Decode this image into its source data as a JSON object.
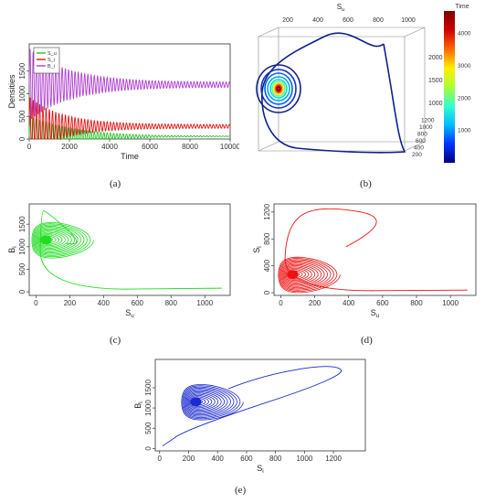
{
  "captions": {
    "a": "(a)",
    "b": "(b)",
    "c": "(c)",
    "d": "(d)",
    "e": "(e)"
  },
  "chart_data": [
    {
      "id": "a",
      "type": "line",
      "xlabel": "Time",
      "ylabel": "Densities",
      "xlim": [
        0,
        10000
      ],
      "ylim": [
        0,
        2100
      ],
      "xticks": [
        0,
        2000,
        4000,
        6000,
        8000,
        10000
      ],
      "yticks": [
        0,
        500,
        1000,
        1500
      ],
      "legend_position": "top-left",
      "series": [
        {
          "name": "S_u",
          "color": "#22c422",
          "baseline": 60,
          "initial_amp": 450,
          "final_amp": 0,
          "damping": 0.00045
        },
        {
          "name": "S_i",
          "color": "#e01515",
          "baseline": 280,
          "initial_amp": 650,
          "final_amp": 40,
          "damping": 0.0006
        },
        {
          "name": "B_i",
          "color": "#b040d0",
          "baseline": 1200,
          "initial_amp": 800,
          "final_amp": 55,
          "damping": 0.0005
        }
      ],
      "period": 160
    },
    {
      "id": "b",
      "type": "line3d",
      "axes": {
        "x": "S_u",
        "y": "B_i",
        "z": "S_i"
      },
      "x_ticks": [
        200,
        400,
        600,
        800,
        1000
      ],
      "y_ticks": [
        1000,
        1500,
        2000
      ],
      "z_ticks": [
        200,
        400,
        600,
        800,
        1000,
        1200
      ],
      "colorbar": {
        "title": "Time",
        "ticks": [
          1000,
          2000,
          3000,
          4000
        ],
        "range": [
          0,
          4700
        ],
        "colors": [
          "#00007f",
          "#0033ff",
          "#00bbff",
          "#33ffcc",
          "#aaff33",
          "#ffee00",
          "#ff6600",
          "#cc0000",
          "#7f0000"
        ]
      }
    },
    {
      "id": "c",
      "type": "line",
      "xlabel": "S_u",
      "ylabel": "B_i",
      "color": "#22dd22",
      "xlim": [
        -40,
        1150
      ],
      "ylim": [
        -80,
        1950
      ],
      "xticks": [
        0,
        200,
        400,
        600,
        800,
        1000
      ],
      "yticks": [
        0,
        500,
        1000,
        1500
      ],
      "attractor": [
        60,
        1150
      ],
      "first_loop": [
        [
          1100,
          80
        ],
        [
          20,
          40
        ],
        [
          30,
          1800
        ],
        [
          60,
          1800
        ],
        [
          300,
          1000
        ]
      ]
    },
    {
      "id": "d",
      "type": "line",
      "xlabel": "S_u",
      "ylabel": "S_i",
      "color": "#ee1111",
      "xlim": [
        -40,
        1150
      ],
      "ylim": [
        -40,
        1320
      ],
      "xticks": [
        0,
        200,
        400,
        600,
        800,
        1000
      ],
      "yticks": [
        0,
        400,
        800,
        1200
      ],
      "attractor": [
        70,
        270
      ],
      "first_loop": [
        [
          1100,
          40
        ],
        [
          20,
          20
        ],
        [
          30,
          1000
        ],
        [
          220,
          1310
        ],
        [
          700,
          1100
        ]
      ]
    },
    {
      "id": "e",
      "type": "line",
      "xlabel": "S_i",
      "ylabel": "B_i",
      "color": "#1a2ad0",
      "xlim": [
        -30,
        1420
      ],
      "ylim": [
        -60,
        2200
      ],
      "xticks": [
        0,
        200,
        400,
        600,
        800,
        1000,
        1200
      ],
      "yticks": [
        0,
        500,
        1000,
        1500
      ],
      "attractor": [
        250,
        1150
      ],
      "first_loop": [
        [
          20,
          60
        ],
        [
          200,
          500
        ],
        [
          1300,
          1800
        ],
        [
          1200,
          2100
        ],
        [
          700,
          1800
        ]
      ]
    }
  ]
}
